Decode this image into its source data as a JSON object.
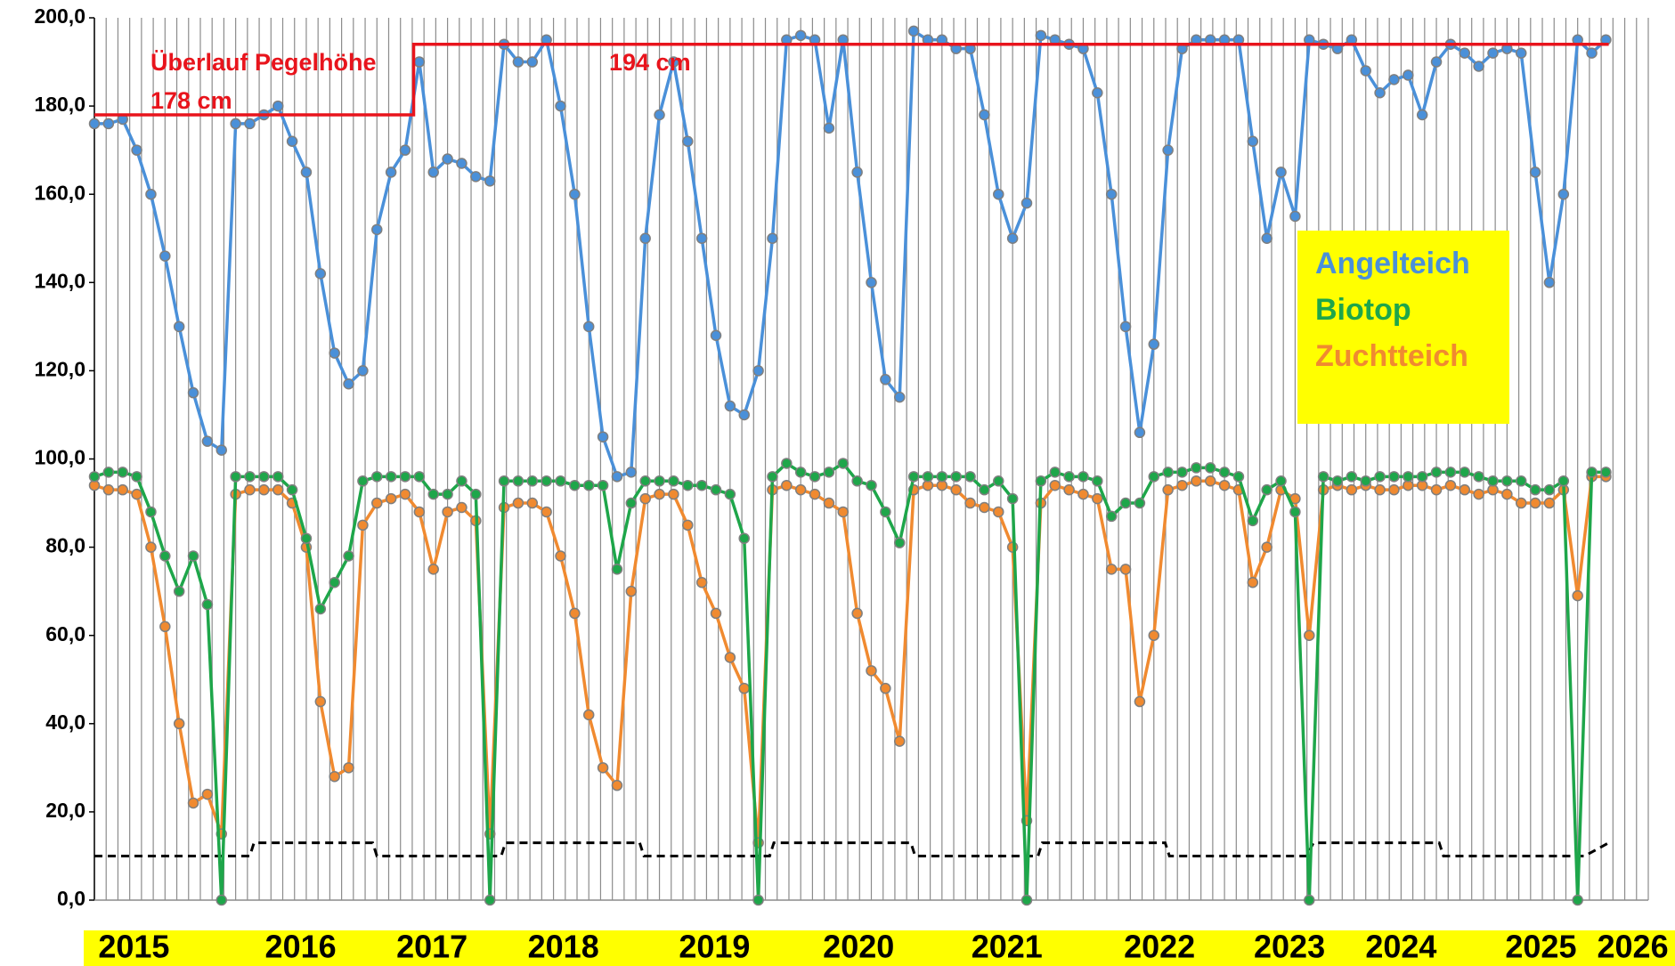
{
  "chart_data": {
    "type": "line",
    "x": [
      2015.0,
      2015.1,
      2015.2,
      2015.3,
      2015.4,
      2015.5,
      2015.6,
      2015.7,
      2015.8,
      2015.9,
      2016.0,
      2016.1,
      2016.2,
      2016.3,
      2016.4,
      2016.5,
      2016.6,
      2016.7,
      2016.8,
      2016.9,
      2017.0,
      2017.1,
      2017.2,
      2017.3,
      2017.4,
      2017.5,
      2017.6,
      2017.7,
      2017.8,
      2017.9,
      2018.0,
      2018.1,
      2018.2,
      2018.3,
      2018.4,
      2018.5,
      2018.6,
      2018.7,
      2018.8,
      2018.9,
      2019.0,
      2019.1,
      2019.2,
      2019.3,
      2019.4,
      2019.5,
      2019.6,
      2019.7,
      2019.8,
      2019.9,
      2020.0,
      2020.1,
      2020.2,
      2020.3,
      2020.4,
      2020.5,
      2020.6,
      2020.7,
      2020.8,
      2020.9,
      2021.0,
      2021.1,
      2021.2,
      2021.3,
      2021.4,
      2021.5,
      2021.6,
      2021.7,
      2021.8,
      2021.9,
      2022.0,
      2022.1,
      2022.2,
      2022.3,
      2022.4,
      2022.5,
      2022.6,
      2022.7,
      2022.8,
      2022.9,
      2023.0,
      2023.1,
      2023.2,
      2023.3,
      2023.4,
      2023.5,
      2023.6,
      2023.7,
      2023.8,
      2023.9,
      2024.0,
      2024.1,
      2024.2,
      2024.3,
      2024.4,
      2024.5,
      2024.6,
      2024.7,
      2024.8,
      2024.9,
      2025.0,
      2025.1,
      2025.2,
      2025.3,
      2025.4,
      2025.5,
      2025.6,
      2025.7
    ],
    "series": [
      {
        "name": "Angelteich",
        "color": "#4a90d9",
        "values": [
          176,
          176,
          177,
          170,
          160,
          146,
          130,
          115,
          104,
          102,
          176,
          176,
          178,
          180,
          172,
          165,
          142,
          124,
          117,
          120,
          152,
          165,
          170,
          190,
          165,
          168,
          167,
          164,
          163,
          194,
          190,
          190,
          195,
          180,
          160,
          130,
          105,
          96,
          97,
          150,
          178,
          190,
          172,
          150,
          128,
          112,
          110,
          120,
          150,
          195,
          196,
          195,
          175,
          195,
          165,
          140,
          118,
          114,
          197,
          195,
          195,
          193,
          193,
          178,
          160,
          150,
          158,
          196,
          195,
          194,
          193,
          183,
          160,
          130,
          106,
          126,
          170,
          193,
          195,
          195,
          195,
          195,
          172,
          150,
          165,
          155,
          195,
          194,
          193,
          195,
          188,
          183,
          186,
          187,
          178,
          190,
          194,
          192,
          189,
          192,
          193,
          192,
          165,
          140,
          160,
          195,
          192,
          195
        ]
      },
      {
        "name": "Biotop",
        "color": "#1ea64a",
        "values": [
          96,
          97,
          97,
          96,
          88,
          78,
          70,
          78,
          67,
          0,
          96,
          96,
          96,
          96,
          93,
          82,
          66,
          72,
          78,
          95,
          96,
          96,
          96,
          96,
          92,
          92,
          95,
          92,
          0,
          95,
          95,
          95,
          95,
          95,
          94,
          94,
          94,
          75,
          90,
          95,
          95,
          95,
          94,
          94,
          93,
          92,
          82,
          0,
          96,
          99,
          97,
          96,
          97,
          99,
          95,
          94,
          88,
          81,
          96,
          96,
          96,
          96,
          96,
          93,
          95,
          91,
          0,
          95,
          97,
          96,
          96,
          95,
          87,
          90,
          90,
          96,
          97,
          97,
          98,
          98,
          97,
          96,
          86,
          93,
          95,
          88,
          0,
          96,
          95,
          96,
          95,
          96,
          96,
          96,
          96,
          97,
          97,
          97,
          96,
          95,
          95,
          95,
          93,
          93,
          95,
          0,
          97,
          97
        ]
      },
      {
        "name": "Zuchtteich",
        "color": "#f08a30",
        "values": [
          94,
          93,
          93,
          92,
          80,
          62,
          40,
          22,
          24,
          15,
          92,
          93,
          93,
          93,
          90,
          80,
          45,
          28,
          30,
          85,
          90,
          91,
          92,
          88,
          75,
          88,
          89,
          86,
          15,
          89,
          90,
          90,
          88,
          78,
          65,
          42,
          30,
          26,
          70,
          91,
          92,
          92,
          85,
          72,
          65,
          55,
          48,
          13,
          93,
          94,
          93,
          92,
          90,
          88,
          65,
          52,
          48,
          36,
          93,
          94,
          94,
          93,
          90,
          89,
          88,
          80,
          18,
          90,
          94,
          93,
          92,
          91,
          75,
          75,
          45,
          60,
          93,
          94,
          95,
          95,
          94,
          93,
          72,
          80,
          93,
          91,
          60,
          93,
          94,
          93,
          94,
          93,
          93,
          94,
          94,
          93,
          94,
          93,
          92,
          93,
          92,
          90,
          90,
          90,
          93,
          69,
          96,
          96
        ]
      }
    ],
    "overflow": {
      "color": "#e8141c",
      "x": [
        2015.0,
        2017.26,
        2017.26,
        2025.72
      ],
      "values": [
        178,
        178,
        194,
        194
      ]
    },
    "reference": {
      "color": "#000000",
      "x": [
        2015.0,
        2016.1,
        2016.13,
        2016.97,
        2017.0,
        2017.88,
        2017.91,
        2018.86,
        2018.89,
        2019.78,
        2019.81,
        2020.78,
        2020.81,
        2021.68,
        2021.71,
        2022.58,
        2022.61,
        2023.58,
        2023.63,
        2024.52,
        2024.55,
        2025.5,
        2025.55,
        2025.72
      ],
      "values": [
        10,
        10,
        13,
        13,
        10,
        10,
        13,
        13,
        10,
        10,
        13,
        13,
        10,
        10,
        13,
        13,
        10,
        10,
        13,
        13,
        10,
        10,
        10,
        13
      ]
    },
    "annotations": [
      "Überlauf Pegelhöhe",
      "178 cm",
      "194 cm"
    ],
    "xlim": [
      2015,
      2026
    ],
    "xticks": [
      {
        "value": 2015.28,
        "label": "2015"
      },
      {
        "value": 2016.46,
        "label": "2016"
      },
      {
        "value": 2017.39,
        "label": "2017"
      },
      {
        "value": 2018.32,
        "label": "2018"
      },
      {
        "value": 2019.39,
        "label": "2019"
      },
      {
        "value": 2020.41,
        "label": "2020"
      },
      {
        "value": 2021.46,
        "label": "2021"
      },
      {
        "value": 2022.54,
        "label": "2022"
      },
      {
        "value": 2023.46,
        "label": "2023"
      },
      {
        "value": 2024.25,
        "label": "2024"
      },
      {
        "value": 2025.24,
        "label": "2025"
      },
      {
        "value": 2025.89,
        "label": "2026"
      }
    ],
    "ylim": [
      0,
      200
    ],
    "yticks": [
      {
        "value": 0,
        "label": "0,0"
      },
      {
        "value": 20,
        "label": "20,0"
      },
      {
        "value": 40,
        "label": "40,0"
      },
      {
        "value": 60,
        "label": "60,0"
      },
      {
        "value": 80,
        "label": "80,0"
      },
      {
        "value": 100,
        "label": "100,0"
      },
      {
        "value": 120,
        "label": "120,0"
      },
      {
        "value": 140,
        "label": "140,0"
      },
      {
        "value": 160,
        "label": "160,0"
      },
      {
        "value": 180,
        "label": "180,0"
      },
      {
        "value": 200,
        "label": "200,0"
      }
    ],
    "monthly_grid": true,
    "legend": "right",
    "legend_color": "#ffff00",
    "xaxis_band_color": "#ffff00"
  }
}
